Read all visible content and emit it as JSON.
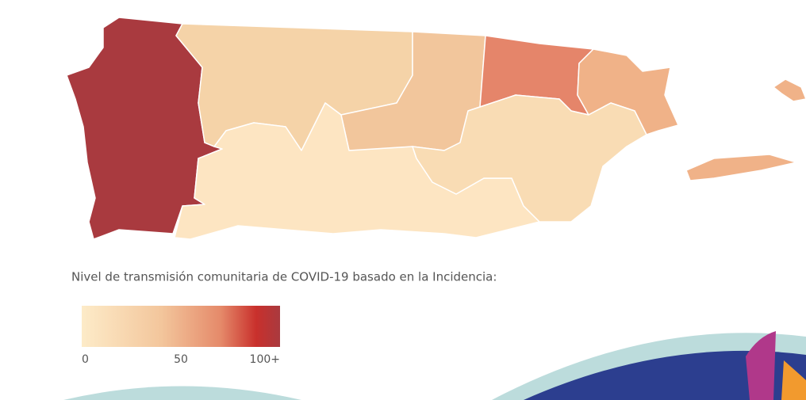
{
  "legend": {
    "title": "Nivel de transmisión comunitaria de COVID-19 basado en la Incidencia:",
    "range": [
      0,
      100
    ],
    "ticks": [
      0,
      50,
      {
        "value": 100,
        "label": "100+"
      }
    ],
    "colors": [
      "#fdebc8",
      "#f3c69c",
      "#e58a6a",
      "#c9302c",
      "#a93a3f"
    ]
  }
}
